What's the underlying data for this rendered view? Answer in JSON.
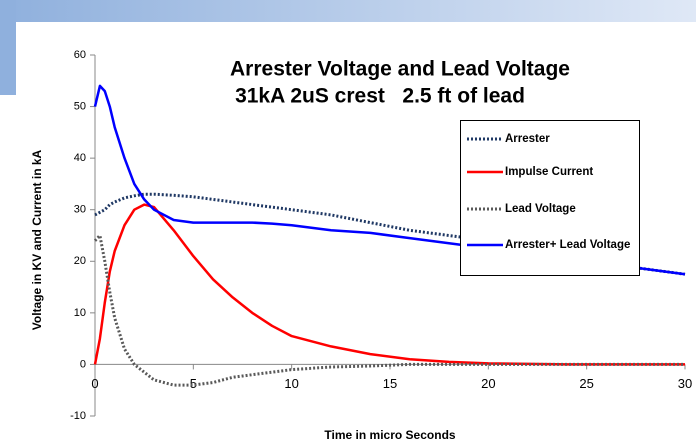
{
  "chart_data": {
    "type": "line",
    "title": "Arrester Voltage and Lead Voltage",
    "subtitle": "31kA 2uS crest   2.5 ft of lead",
    "xlabel": "Time in micro Seconds",
    "ylabel": "Voltage in KV  and Current in kA",
    "x": [
      0,
      0.25,
      0.5,
      0.75,
      1,
      1.5,
      2,
      2.5,
      3,
      4,
      5,
      6,
      7,
      8,
      9,
      10,
      12,
      14,
      16,
      18,
      20,
      22,
      24,
      26,
      28,
      30
    ],
    "series": [
      {
        "name": "Arrester",
        "color": "#1f3864",
        "style": "dotted",
        "values": [
          29,
          29.5,
          30,
          31,
          31.5,
          32.3,
          32.7,
          33,
          33,
          32.8,
          32.5,
          32,
          31.5,
          31,
          30.5,
          30,
          29,
          27.5,
          26,
          25,
          24,
          22.5,
          21,
          19.5,
          18.5,
          17.5
        ]
      },
      {
        "name": "Impulse Current",
        "color": "#ff0000",
        "style": "solid",
        "values": [
          0,
          5,
          12,
          18,
          22,
          27,
          30,
          31,
          30.5,
          26,
          21,
          16.5,
          13,
          10,
          7.5,
          5.5,
          3.5,
          2,
          1,
          0.5,
          0.2,
          0.1,
          0,
          0,
          0,
          0
        ]
      },
      {
        "name": "Lead Voltage",
        "color": "#595959",
        "style": "dotted",
        "values": [
          24,
          25,
          20,
          14,
          9,
          3,
          0,
          -1.5,
          -3,
          -4,
          -4,
          -3.5,
          -2.5,
          -2,
          -1.5,
          -1,
          -0.5,
          -0.3,
          0,
          0,
          0,
          0,
          0,
          0,
          0,
          0
        ]
      },
      {
        "name": "Arrester+ Lead Voltage",
        "color": "#0000ff",
        "style": "solid",
        "values": [
          50,
          54,
          53,
          50,
          46,
          40,
          35,
          32,
          30,
          28,
          27.5,
          27.5,
          27.5,
          27.5,
          27.3,
          27,
          26,
          25.5,
          24.5,
          23.5,
          22.5,
          21.5,
          20.5,
          19.5,
          18.5,
          17.5
        ]
      }
    ],
    "xlim": [
      0,
      30
    ],
    "xticks": [
      0,
      5,
      10,
      15,
      20,
      25,
      30
    ],
    "ylim": [
      -10,
      60
    ],
    "yticks": [
      -10,
      0,
      10,
      20,
      30,
      40,
      50,
      60
    ]
  }
}
